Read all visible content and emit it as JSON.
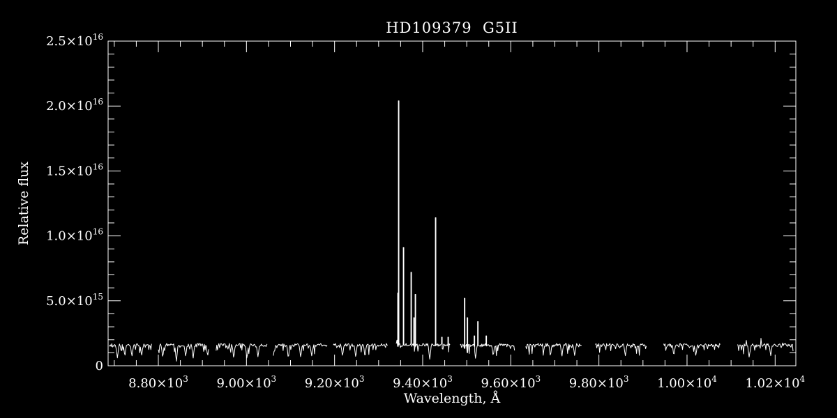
{
  "colors": {
    "background": "#000000",
    "foreground": "#ffffff"
  },
  "chart_data": {
    "type": "line",
    "title": "HD109379  G5II",
    "xlabel": "Wavelength, Å",
    "ylabel": "Relative flux",
    "xlim": [
      8686,
      10247
    ],
    "ylim": [
      0,
      2.5e+16
    ],
    "grid": false,
    "legend": null,
    "x_major_ticks": [
      8800,
      9000,
      9200,
      9400,
      9600,
      9800,
      10000,
      10200
    ],
    "x_tick_labels": [
      {
        "text": "8.80×10",
        "sup": "3"
      },
      {
        "text": "9.00×10",
        "sup": "3"
      },
      {
        "text": "9.20×10",
        "sup": "3"
      },
      {
        "text": "9.40×10",
        "sup": "3"
      },
      {
        "text": "9.60×10",
        "sup": "3"
      },
      {
        "text": "9.80×10",
        "sup": "3"
      },
      {
        "text": "1.00×10",
        "sup": "4"
      },
      {
        "text": "1.02×10",
        "sup": "4"
      }
    ],
    "x_minor_step": 50,
    "y_major_ticks": [
      0,
      5000000000000000.0,
      1e+16,
      1.5e+16,
      2e+16,
      2.5e+16
    ],
    "y_tick_labels": [
      {
        "text": "0",
        "sup": ""
      },
      {
        "text": "5.0×10",
        "sup": "15"
      },
      {
        "text": "1.0×10",
        "sup": "16"
      },
      {
        "text": "1.5×10",
        "sup": "16"
      },
      {
        "text": "2.0×10",
        "sup": "16"
      },
      {
        "text": "2.5×10",
        "sup": "16"
      }
    ],
    "y_minor_step": 1000000000000000.0,
    "continuum_level": 1600000000000000.0,
    "noise_amplitude": 120000000000000.0,
    "segments": [
      [
        8688,
        8786
      ],
      [
        8800,
        8914
      ],
      [
        8931,
        9047
      ],
      [
        9061,
        9183
      ],
      [
        9197,
        9321
      ],
      [
        9340,
        9463
      ],
      [
        9485,
        9609
      ],
      [
        9634,
        9762
      ],
      [
        9792,
        9909
      ],
      [
        9947,
        10076
      ],
      [
        10114,
        10242
      ]
    ],
    "emission_spikes": [
      {
        "wavelength": 9343,
        "flux": 5600000000000000.0
      },
      {
        "wavelength": 9345,
        "flux": 2.04e+16
      },
      {
        "wavelength": 9356,
        "flux": 9100000000000000.0
      },
      {
        "wavelength": 9373,
        "flux": 7200000000000000.0
      },
      {
        "wavelength": 9379,
        "flux": 3700000000000000.0
      },
      {
        "wavelength": 9383,
        "flux": 5500000000000000.0
      },
      {
        "wavelength": 9428,
        "flux": 1.14e+16
      },
      {
        "wavelength": 9443,
        "flux": 2200000000000000.0
      },
      {
        "wavelength": 9457,
        "flux": 2200000000000000.0
      },
      {
        "wavelength": 9495,
        "flux": 5200000000000000.0
      },
      {
        "wavelength": 9501,
        "flux": 3700000000000000.0
      },
      {
        "wavelength": 9517,
        "flux": 2300000000000000.0
      },
      {
        "wavelength": 9525,
        "flux": 3400000000000000.0
      },
      {
        "wavelength": 9544,
        "flux": 2300000000000000.0
      }
    ],
    "absorption_dips": [
      {
        "wavelength": 8707,
        "flux": 600000000000000.0
      },
      {
        "wavelength": 8724,
        "flux": 800000000000000.0
      },
      {
        "wavelength": 8740,
        "flux": 750000000000000.0
      },
      {
        "wavelength": 8762,
        "flux": 800000000000000.0
      },
      {
        "wavelength": 8810,
        "flux": 700000000000000.0
      },
      {
        "wavelength": 8841,
        "flux": 350000000000000.0
      },
      {
        "wavelength": 8862,
        "flux": 750000000000000.0
      },
      {
        "wavelength": 8879,
        "flux": 600000000000000.0
      },
      {
        "wavelength": 8912,
        "flux": 800000000000000.0
      },
      {
        "wavelength": 8971,
        "flux": 650000000000000.0
      },
      {
        "wavelength": 9001,
        "flux": 600000000000000.0
      },
      {
        "wavelength": 9026,
        "flux": 700000000000000.0
      },
      {
        "wavelength": 9061,
        "flux": 800000000000000.0
      },
      {
        "wavelength": 9095,
        "flux": 650000000000000.0
      },
      {
        "wavelength": 9123,
        "flux": 700000000000000.0
      },
      {
        "wavelength": 9148,
        "flux": 750000000000000.0
      },
      {
        "wavelength": 9218,
        "flux": 800000000000000.0
      },
      {
        "wavelength": 9248,
        "flux": 700000000000000.0
      },
      {
        "wavelength": 9269,
        "flux": 750000000000000.0
      },
      {
        "wavelength": 9416,
        "flux": 500000000000000.0
      },
      {
        "wavelength": 9520,
        "flux": 600000000000000.0
      },
      {
        "wavelength": 9560,
        "flux": 800000000000000.0
      },
      {
        "wavelength": 9690,
        "flux": 800000000000000.0
      },
      {
        "wavelength": 9716,
        "flux": 750000000000000.0
      },
      {
        "wavelength": 9745,
        "flux": 800000000000000.0
      },
      {
        "wavelength": 9860,
        "flux": 800000000000000.0
      },
      {
        "wavelength": 9970,
        "flux": 850000000000000.0
      },
      {
        "wavelength": 10020,
        "flux": 800000000000000.0
      },
      {
        "wavelength": 10141,
        "flux": 650000000000000.0
      },
      {
        "wavelength": 10190,
        "flux": 800000000000000.0
      }
    ]
  }
}
